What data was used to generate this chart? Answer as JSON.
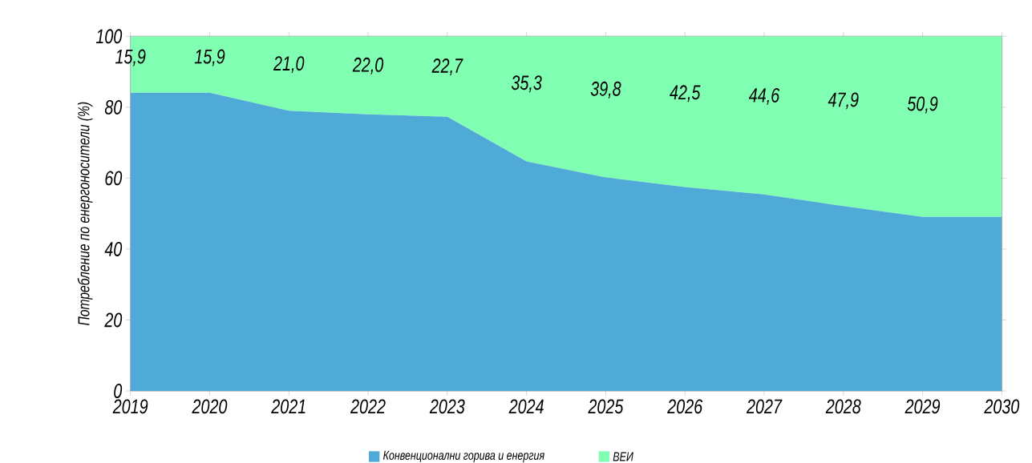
{
  "chart_data": {
    "type": "area",
    "stacked": true,
    "ylabel": "Потребление  по енергоносители   (%)",
    "x": [
      2019,
      2020,
      2021,
      2022,
      2023,
      2024,
      2025,
      2026,
      2027,
      2028,
      2029,
      2030
    ],
    "xlim": [
      2019,
      2030
    ],
    "xticks": [
      2019,
      2020,
      2021,
      2022,
      2023,
      2024,
      2025,
      2026,
      2027,
      2028,
      2029,
      2030
    ],
    "ylim": [
      0,
      100
    ],
    "yticks": [
      0,
      20,
      40,
      60,
      80,
      100
    ],
    "grid": true,
    "legend": "bottom",
    "series": [
      {
        "name": "Конвенционални горива и енергия",
        "color": "#4faad8",
        "values": [
          84.1,
          84.1,
          79.0,
          78.0,
          77.3,
          64.7,
          60.2,
          57.5,
          55.4,
          52.1,
          49.1,
          49.1
        ]
      },
      {
        "name": "ВЕИ",
        "color": "#80ffb2",
        "values": [
          15.9,
          15.9,
          21.0,
          22.0,
          22.7,
          35.3,
          39.8,
          42.5,
          44.6,
          47.9,
          50.9,
          50.9
        ],
        "value_labels": [
          "15,9",
          "15,9",
          "21,0",
          "22,0",
          "22,7",
          "35,3",
          "39,8",
          "42,5",
          "44,6",
          "47,9",
          "50,9",
          null
        ]
      }
    ]
  }
}
